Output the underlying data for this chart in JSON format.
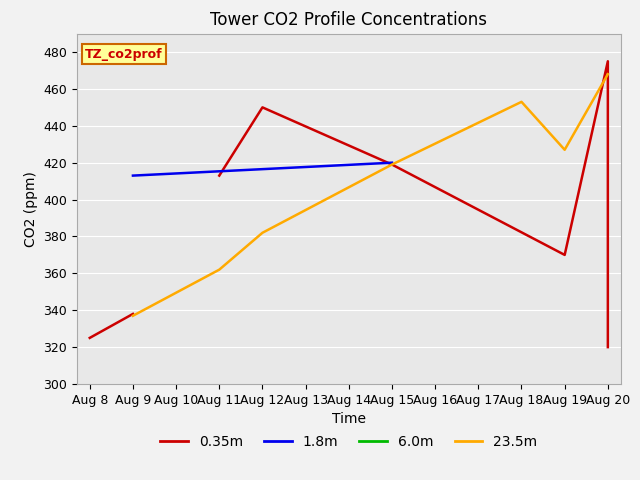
{
  "title": "Tower CO2 Profile Concentrations",
  "xlabel": "Time",
  "ylabel": "CO2 (ppm)",
  "ylim": [
    300,
    490
  ],
  "yticks": [
    300,
    320,
    340,
    360,
    380,
    400,
    420,
    440,
    460,
    480
  ],
  "x_labels": [
    "Aug 8",
    "Aug 9",
    "Aug 10",
    "Aug 11",
    "Aug 12",
    "Aug 13",
    "Aug 14",
    "Aug 15",
    "Aug 16",
    "Aug 17",
    "Aug 18",
    "Aug 19",
    "Aug 20"
  ],
  "series": {
    "red": {
      "color": "#cc0000",
      "segments": [
        {
          "x": [
            0,
            1
          ],
          "y": [
            325,
            338
          ]
        },
        {
          "x": [
            3,
            4,
            7,
            11,
            12,
            12
          ],
          "y": [
            413,
            450,
            419,
            370,
            475,
            320
          ]
        }
      ]
    },
    "blue": {
      "color": "#0000ee",
      "x": [
        1,
        7
      ],
      "y": [
        413,
        420
      ]
    },
    "orange": {
      "color": "#ffaa00",
      "x": [
        1,
        3,
        4,
        7,
        10,
        11,
        12
      ],
      "y": [
        337,
        362,
        382,
        419,
        453,
        427,
        468
      ]
    }
  },
  "legend_label": "TZ_co2prof",
  "legend_color": "#cc0000",
  "legend_bg": "#ffff99",
  "legend_border": "#cc6600",
  "fig_bg": "#f2f2f2",
  "plot_bg": "#e8e8e8",
  "grid_color": "#ffffff",
  "title_fontsize": 12,
  "axis_label_fontsize": 10,
  "tick_fontsize": 9,
  "legend_items": [
    {
      "label": "0.35m",
      "color": "#cc0000"
    },
    {
      "label": "1.8m",
      "color": "#0000ee"
    },
    {
      "label": "6.0m",
      "color": "#00bb00"
    },
    {
      "label": "23.5m",
      "color": "#ffaa00"
    }
  ]
}
